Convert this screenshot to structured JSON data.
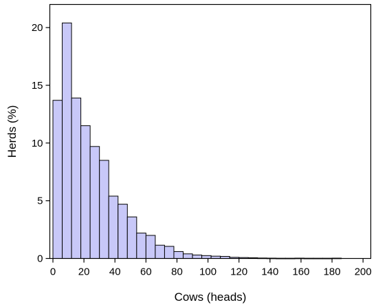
{
  "chart_data": {
    "type": "bar",
    "xlabel": "Cows (heads)",
    "ylabel": "Herds (%)",
    "xlim": [
      -2,
      205
    ],
    "ylim": [
      0,
      22
    ],
    "bin_width": 6,
    "bins": [
      {
        "x0": 0,
        "x1": 6,
        "value": 13.7
      },
      {
        "x0": 6,
        "x1": 12,
        "value": 20.4
      },
      {
        "x0": 12,
        "x1": 18,
        "value": 13.9
      },
      {
        "x0": 18,
        "x1": 24,
        "value": 11.5
      },
      {
        "x0": 24,
        "x1": 30,
        "value": 9.7
      },
      {
        "x0": 30,
        "x1": 36,
        "value": 8.5
      },
      {
        "x0": 36,
        "x1": 42,
        "value": 5.4
      },
      {
        "x0": 42,
        "x1": 48,
        "value": 4.7
      },
      {
        "x0": 48,
        "x1": 54,
        "value": 3.6
      },
      {
        "x0": 54,
        "x1": 60,
        "value": 2.2
      },
      {
        "x0": 60,
        "x1": 66,
        "value": 2.0
      },
      {
        "x0": 66,
        "x1": 72,
        "value": 1.15
      },
      {
        "x0": 72,
        "x1": 78,
        "value": 1.05
      },
      {
        "x0": 78,
        "x1": 84,
        "value": 0.6
      },
      {
        "x0": 84,
        "x1": 90,
        "value": 0.4
      },
      {
        "x0": 90,
        "x1": 96,
        "value": 0.3
      },
      {
        "x0": 96,
        "x1": 102,
        "value": 0.25
      },
      {
        "x0": 102,
        "x1": 108,
        "value": 0.2
      },
      {
        "x0": 108,
        "x1": 114,
        "value": 0.18
      },
      {
        "x0": 114,
        "x1": 120,
        "value": 0.1
      },
      {
        "x0": 120,
        "x1": 126,
        "value": 0.08
      },
      {
        "x0": 126,
        "x1": 132,
        "value": 0.06
      },
      {
        "x0": 132,
        "x1": 138,
        "value": 0.04
      },
      {
        "x0": 138,
        "x1": 144,
        "value": 0.03
      },
      {
        "x0": 144,
        "x1": 150,
        "value": 0.02
      },
      {
        "x0": 150,
        "x1": 156,
        "value": 0.02
      },
      {
        "x0": 156,
        "x1": 162,
        "value": 0.03
      },
      {
        "x0": 162,
        "x1": 168,
        "value": 0.02
      },
      {
        "x0": 168,
        "x1": 174,
        "value": 0.02
      },
      {
        "x0": 174,
        "x1": 180,
        "value": 0.02
      },
      {
        "x0": 180,
        "x1": 186,
        "value": 0.03
      }
    ],
    "x_ticks": [
      0,
      20,
      40,
      60,
      80,
      100,
      120,
      140,
      160,
      180,
      200
    ],
    "x_tick_labels": [
      "0",
      "20",
      "40",
      "60",
      "80",
      "100",
      "120",
      "140",
      "160",
      "180",
      "200"
    ],
    "y_ticks": [
      0,
      5,
      10,
      15,
      20
    ],
    "y_tick_labels": [
      "0",
      "5",
      "10",
      "15",
      "20"
    ],
    "grid": false,
    "legend": "none",
    "bar_fill": "#c8c8f8",
    "bar_stroke": "#000000"
  }
}
